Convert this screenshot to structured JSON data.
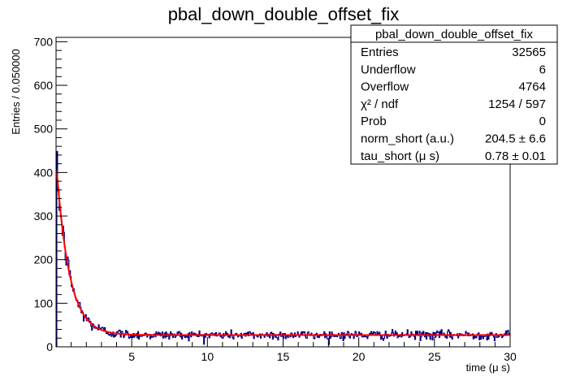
{
  "chart_data": {
    "type": "histogram",
    "title": "pbal_down_double_offset_fix",
    "xlabel": "time (μ s)",
    "ylabel": "Entries / 0.050000",
    "xlim": [
      0,
      30
    ],
    "ylim": [
      0,
      710
    ],
    "x_ticks": [
      5,
      10,
      15,
      20,
      25,
      30
    ],
    "y_ticks": [
      0,
      100,
      200,
      300,
      400,
      500,
      600,
      700
    ],
    "grid": false,
    "histogram": {
      "name": "pbal_down_double_offset_fix",
      "color": "#000080",
      "bin_width": 0.05,
      "x_start": 0.05,
      "x_end": 30.0,
      "model_for_shape": "A*exp(-t/tau)+C",
      "approx_params": {
        "A": 400,
        "tau": 0.85,
        "C": 27
      },
      "sampled_points": [
        {
          "x": 0.1,
          "y": 395
        },
        {
          "x": 0.3,
          "y": 330
        },
        {
          "x": 0.5,
          "y": 290
        },
        {
          "x": 1.0,
          "y": 215
        },
        {
          "x": 1.5,
          "y": 160
        },
        {
          "x": 2.0,
          "y": 120
        },
        {
          "x": 3.0,
          "y": 75
        },
        {
          "x": 4.0,
          "y": 50
        },
        {
          "x": 5.0,
          "y": 40
        },
        {
          "x": 7.0,
          "y": 32
        },
        {
          "x": 10.0,
          "y": 28
        },
        {
          "x": 15.0,
          "y": 27
        },
        {
          "x": 20.0,
          "y": 27
        },
        {
          "x": 25.0,
          "y": 27
        },
        {
          "x": 30.0,
          "y": 27
        }
      ]
    },
    "fit": {
      "name": "fit",
      "color": "#ff0000",
      "function": "A*exp(-t/tau)+C",
      "params": {
        "A": 400,
        "tau": 0.85,
        "C": 27
      },
      "x_range": [
        0.05,
        30.0
      ]
    },
    "stats_box": {
      "placement": "top-right",
      "title": "pbal_down_double_offset_fix",
      "rows": [
        {
          "label": "Entries",
          "value": "32565"
        },
        {
          "label": "Underflow",
          "value": "6"
        },
        {
          "label": "Overflow",
          "value": "4764"
        },
        {
          "label": "χ² / ndf",
          "value": "1254 / 597"
        },
        {
          "label": "Prob",
          "value": "0"
        },
        {
          "label": "norm_short (a.u.)",
          "value": "204.5 ± 6.6"
        },
        {
          "label": "tau_short (μ s)",
          "value": "0.78 ± 0.01"
        }
      ]
    }
  }
}
